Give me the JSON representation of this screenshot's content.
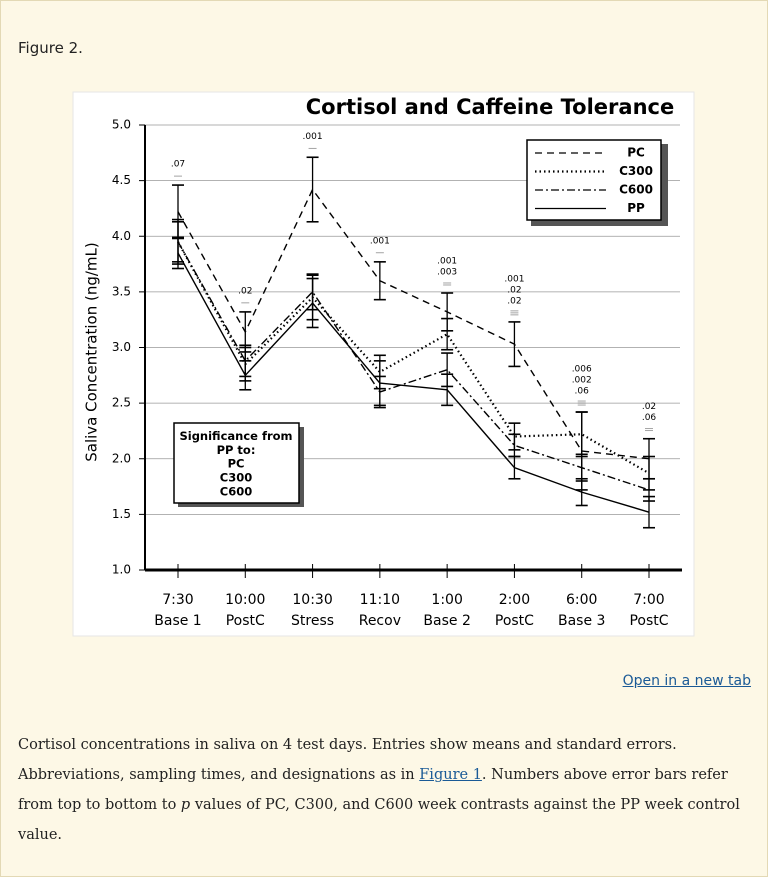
{
  "figure_label": "Figure 2.",
  "open_link": "Open in a new tab",
  "caption": [
    "Cortisol concentrations in saliva on 4 test days. Entries show means and standard errors. Abbreviations, sampling times, and designations as in ",
    "Figure 1",
    ". Numbers above error bars refer from top to bottom to ",
    "p",
    " values of PC, C300, and C600 week contrasts against the PP week control value."
  ],
  "chart_data": {
    "type": "line",
    "title": "Cortisol and Caffeine Tolerance",
    "y_label": "Saliva Concentration (ng/mL)",
    "times": [
      "7:30",
      "10:00",
      "10:30",
      "11:10",
      "1:00",
      "2:00",
      "6:00",
      "7:00"
    ],
    "categories": [
      "Base 1",
      "PostC",
      "Stress",
      "Recov",
      "Base 2",
      "PostC",
      "Base 3",
      "PostC"
    ],
    "ylim": [
      1,
      5
    ],
    "yticks": [
      {
        "value": 1,
        "label": "1.0"
      },
      {
        "value": 1.5,
        "label": "1.5"
      },
      {
        "value": 2,
        "label": "2.0"
      },
      {
        "value": 2.5,
        "label": "2.5"
      },
      {
        "value": 3,
        "label": "3.0"
      },
      {
        "value": 3.5,
        "label": "3.5"
      },
      {
        "value": 4,
        "label": "4.0"
      },
      {
        "value": 4.5,
        "label": "4.5"
      },
      {
        "value": 5,
        "label": "5.0"
      }
    ],
    "grid": true,
    "legend": "top-right",
    "series": [
      {
        "name": "PC",
        "color": "#000000",
        "dash": "dashed",
        "values": [
          4.22,
          3.14,
          4.42,
          3.6,
          3.32,
          3.03,
          2.07,
          2.0
        ],
        "errors": [
          0.24,
          0.18,
          0.29,
          0.17,
          0.17,
          0.2,
          0.35,
          0.18
        ]
      },
      {
        "name": "C300",
        "color": "#000000",
        "dash": "dotted",
        "values": [
          3.95,
          2.85,
          3.45,
          2.78,
          3.12,
          2.2,
          2.22,
          1.87
        ],
        "errors": [
          0.2,
          0.15,
          0.2,
          0.15,
          0.14,
          0.12,
          0.2,
          0.15
        ]
      },
      {
        "name": "C600",
        "color": "#000000",
        "dash": "dashdot",
        "values": [
          3.95,
          2.88,
          3.5,
          2.6,
          2.8,
          2.12,
          1.92,
          1.72
        ],
        "errors": [
          0.18,
          0.14,
          0.16,
          0.14,
          0.15,
          0.1,
          0.12,
          0.1
        ]
      },
      {
        "name": "PP",
        "color": "#000000",
        "dash": "solid",
        "values": [
          3.85,
          2.75,
          3.4,
          2.68,
          2.62,
          1.92,
          1.7,
          1.52
        ],
        "errors": [
          0.14,
          0.13,
          0.22,
          0.2,
          0.14,
          0.1,
          0.12,
          0.14
        ]
      }
    ],
    "p_labels": [
      [
        ".07"
      ],
      [
        ".02"
      ],
      [
        ".001"
      ],
      [
        ".001"
      ],
      [
        ".001",
        ".003"
      ],
      [
        ".001",
        ".02",
        ".02"
      ],
      [
        ".006",
        ".002",
        ".06"
      ],
      [
        ".02",
        ".06"
      ]
    ],
    "significance_box": {
      "title": "Significance from PP to:",
      "items": [
        "PC",
        "C300",
        "C600"
      ]
    }
  }
}
